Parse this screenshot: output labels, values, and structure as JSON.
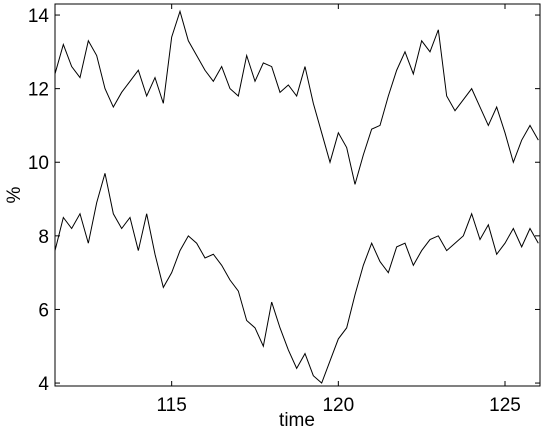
{
  "chart_data": {
    "type": "line",
    "x_label": "time",
    "y_label": "%",
    "x": [
      111.5,
      111.75,
      112,
      112.25,
      112.5,
      112.75,
      113,
      113.25,
      113.5,
      113.75,
      114,
      114.25,
      114.5,
      114.75,
      115,
      115.25,
      115.5,
      115.75,
      116,
      116.25,
      116.5,
      116.75,
      117,
      117.25,
      117.5,
      117.75,
      118,
      118.25,
      118.5,
      118.75,
      119,
      119.25,
      119.5,
      119.75,
      120,
      120.25,
      120.5,
      120.75,
      121,
      121.25,
      121.5,
      121.75,
      122,
      122.25,
      122.5,
      122.75,
      123,
      123.25,
      123.5,
      123.75,
      124,
      124.25,
      124.5,
      124.75,
      125,
      125.25,
      125.5,
      125.75,
      126
    ],
    "series": [
      {
        "color": "#000000",
        "values": [
          12.4,
          13.2,
          12.6,
          12.3,
          13.3,
          12.9,
          12.0,
          11.5,
          11.9,
          12.2,
          12.5,
          11.8,
          12.3,
          11.6,
          13.4,
          14.1,
          13.3,
          12.9,
          12.5,
          12.2,
          12.6,
          12.0,
          11.8,
          12.9,
          12.2,
          12.7,
          12.6,
          11.9,
          12.1,
          11.8,
          12.6,
          11.6,
          10.8,
          10.0,
          10.8,
          10.4,
          9.4,
          10.2,
          10.9,
          11.0,
          11.8,
          12.5,
          13.0,
          12.4,
          13.3,
          13.0,
          13.6,
          11.8,
          11.4,
          11.7,
          12.0,
          11.5,
          11.0,
          11.5,
          10.8,
          10.0,
          10.6,
          11.0,
          10.6
        ]
      },
      {
        "color": "#000000",
        "values": [
          7.6,
          8.5,
          8.2,
          8.6,
          7.8,
          8.9,
          9.7,
          8.6,
          8.2,
          8.5,
          7.6,
          8.6,
          7.5,
          6.6,
          7.0,
          7.6,
          8.0,
          7.8,
          7.4,
          7.5,
          7.2,
          6.8,
          6.5,
          5.7,
          5.5,
          5.0,
          6.2,
          5.5,
          4.9,
          4.4,
          4.8,
          4.2,
          4.0,
          4.6,
          5.2,
          5.5,
          6.4,
          7.2,
          7.8,
          7.3,
          7.0,
          7.7,
          7.8,
          7.2,
          7.6,
          7.9,
          8.0,
          7.6,
          7.8,
          8.0,
          8.6,
          7.9,
          8.3,
          7.5,
          7.8,
          8.2,
          7.7,
          8.2,
          7.8
        ]
      }
    ],
    "xlim": [
      111.5,
      126.05
    ],
    "ylim": [
      3.92,
      14.3
    ],
    "xticks": [
      115,
      120,
      125
    ],
    "yticks": [
      4,
      6,
      8,
      10,
      12,
      14
    ],
    "grid": false
  }
}
